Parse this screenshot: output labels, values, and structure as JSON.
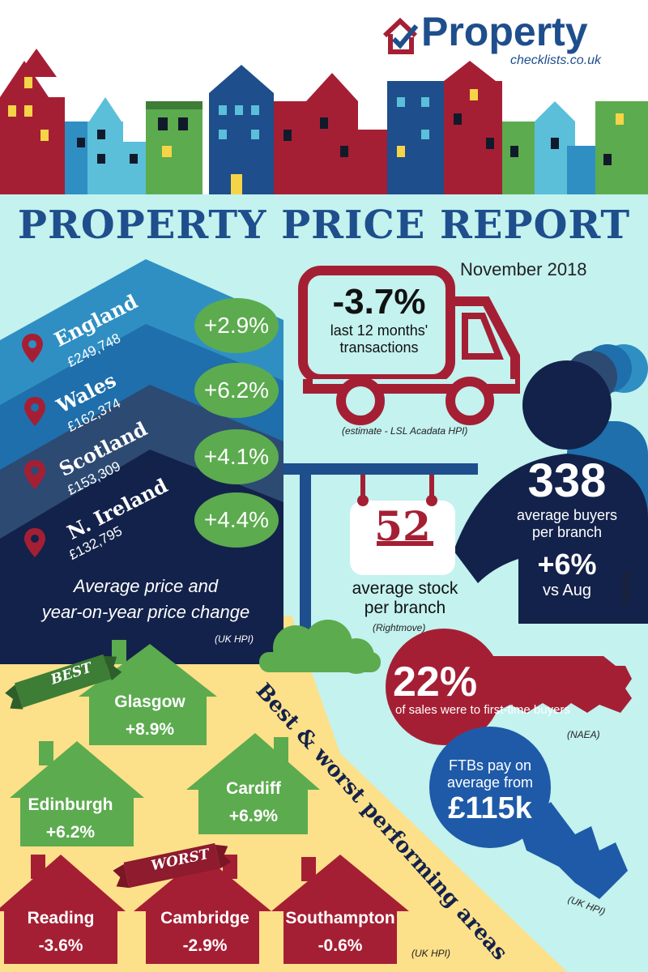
{
  "logo": {
    "name": "Property",
    "sub": "checklists.co.uk"
  },
  "title": "PROPERTY PRICE REPORT",
  "date": "November 2018",
  "regions": [
    {
      "name": "England",
      "price": "£249,748",
      "change": "+2.9%"
    },
    {
      "name": "Wales",
      "price": "£162,374",
      "change": "+6.2%"
    },
    {
      "name": "Scotland",
      "price": "£153,309",
      "change": "+4.1%"
    },
    {
      "name": "N. Ireland",
      "price": "£132,795",
      "change": "+4.4%"
    }
  ],
  "regions_caption": {
    "line1": "Average price and",
    "line2": "year-on-year price change",
    "source": "(UK HPI)"
  },
  "transactions": {
    "value": "-3.7%",
    "line1": "last 12 months'",
    "line2": "transactions",
    "source": "(estimate - LSL Acadata HPI)"
  },
  "stock": {
    "value": "52",
    "line1": "average stock",
    "line2": "per branch",
    "source": "(Rightmove)"
  },
  "buyers": {
    "value": "338",
    "line1": "average buyers",
    "line2": "per branch",
    "change": "+6%",
    "vs": "vs Aug",
    "source": "(NAEA)"
  },
  "ftb": {
    "value": "22%",
    "text": "of sales were to first-time buyers",
    "source": "(NAEA)"
  },
  "ftb_pay": {
    "line1": "FTBs pay on",
    "line2": "average from",
    "value": "£115k",
    "source": "(UK HPI)"
  },
  "best_label": "BEST",
  "worst_label": "WORST",
  "areas_title": "Best & worst performing areas",
  "areas_source": "(UK HPI)",
  "best": [
    {
      "city": "Glasgow",
      "change": "+8.9%"
    },
    {
      "city": "Edinburgh",
      "change": "+6.2%"
    },
    {
      "city": "Cardiff",
      "change": "+6.9%"
    }
  ],
  "worst": [
    {
      "city": "Reading",
      "change": "-3.6%"
    },
    {
      "city": "Cambridge",
      "change": "-2.9%"
    },
    {
      "city": "Southampton",
      "change": "-0.6%"
    }
  ],
  "colors": {
    "navy": "#1e4e8c",
    "red": "#a51f34",
    "green": "#5cab4f",
    "yellow": "#fde08a",
    "bg": "#c3f2ef"
  }
}
